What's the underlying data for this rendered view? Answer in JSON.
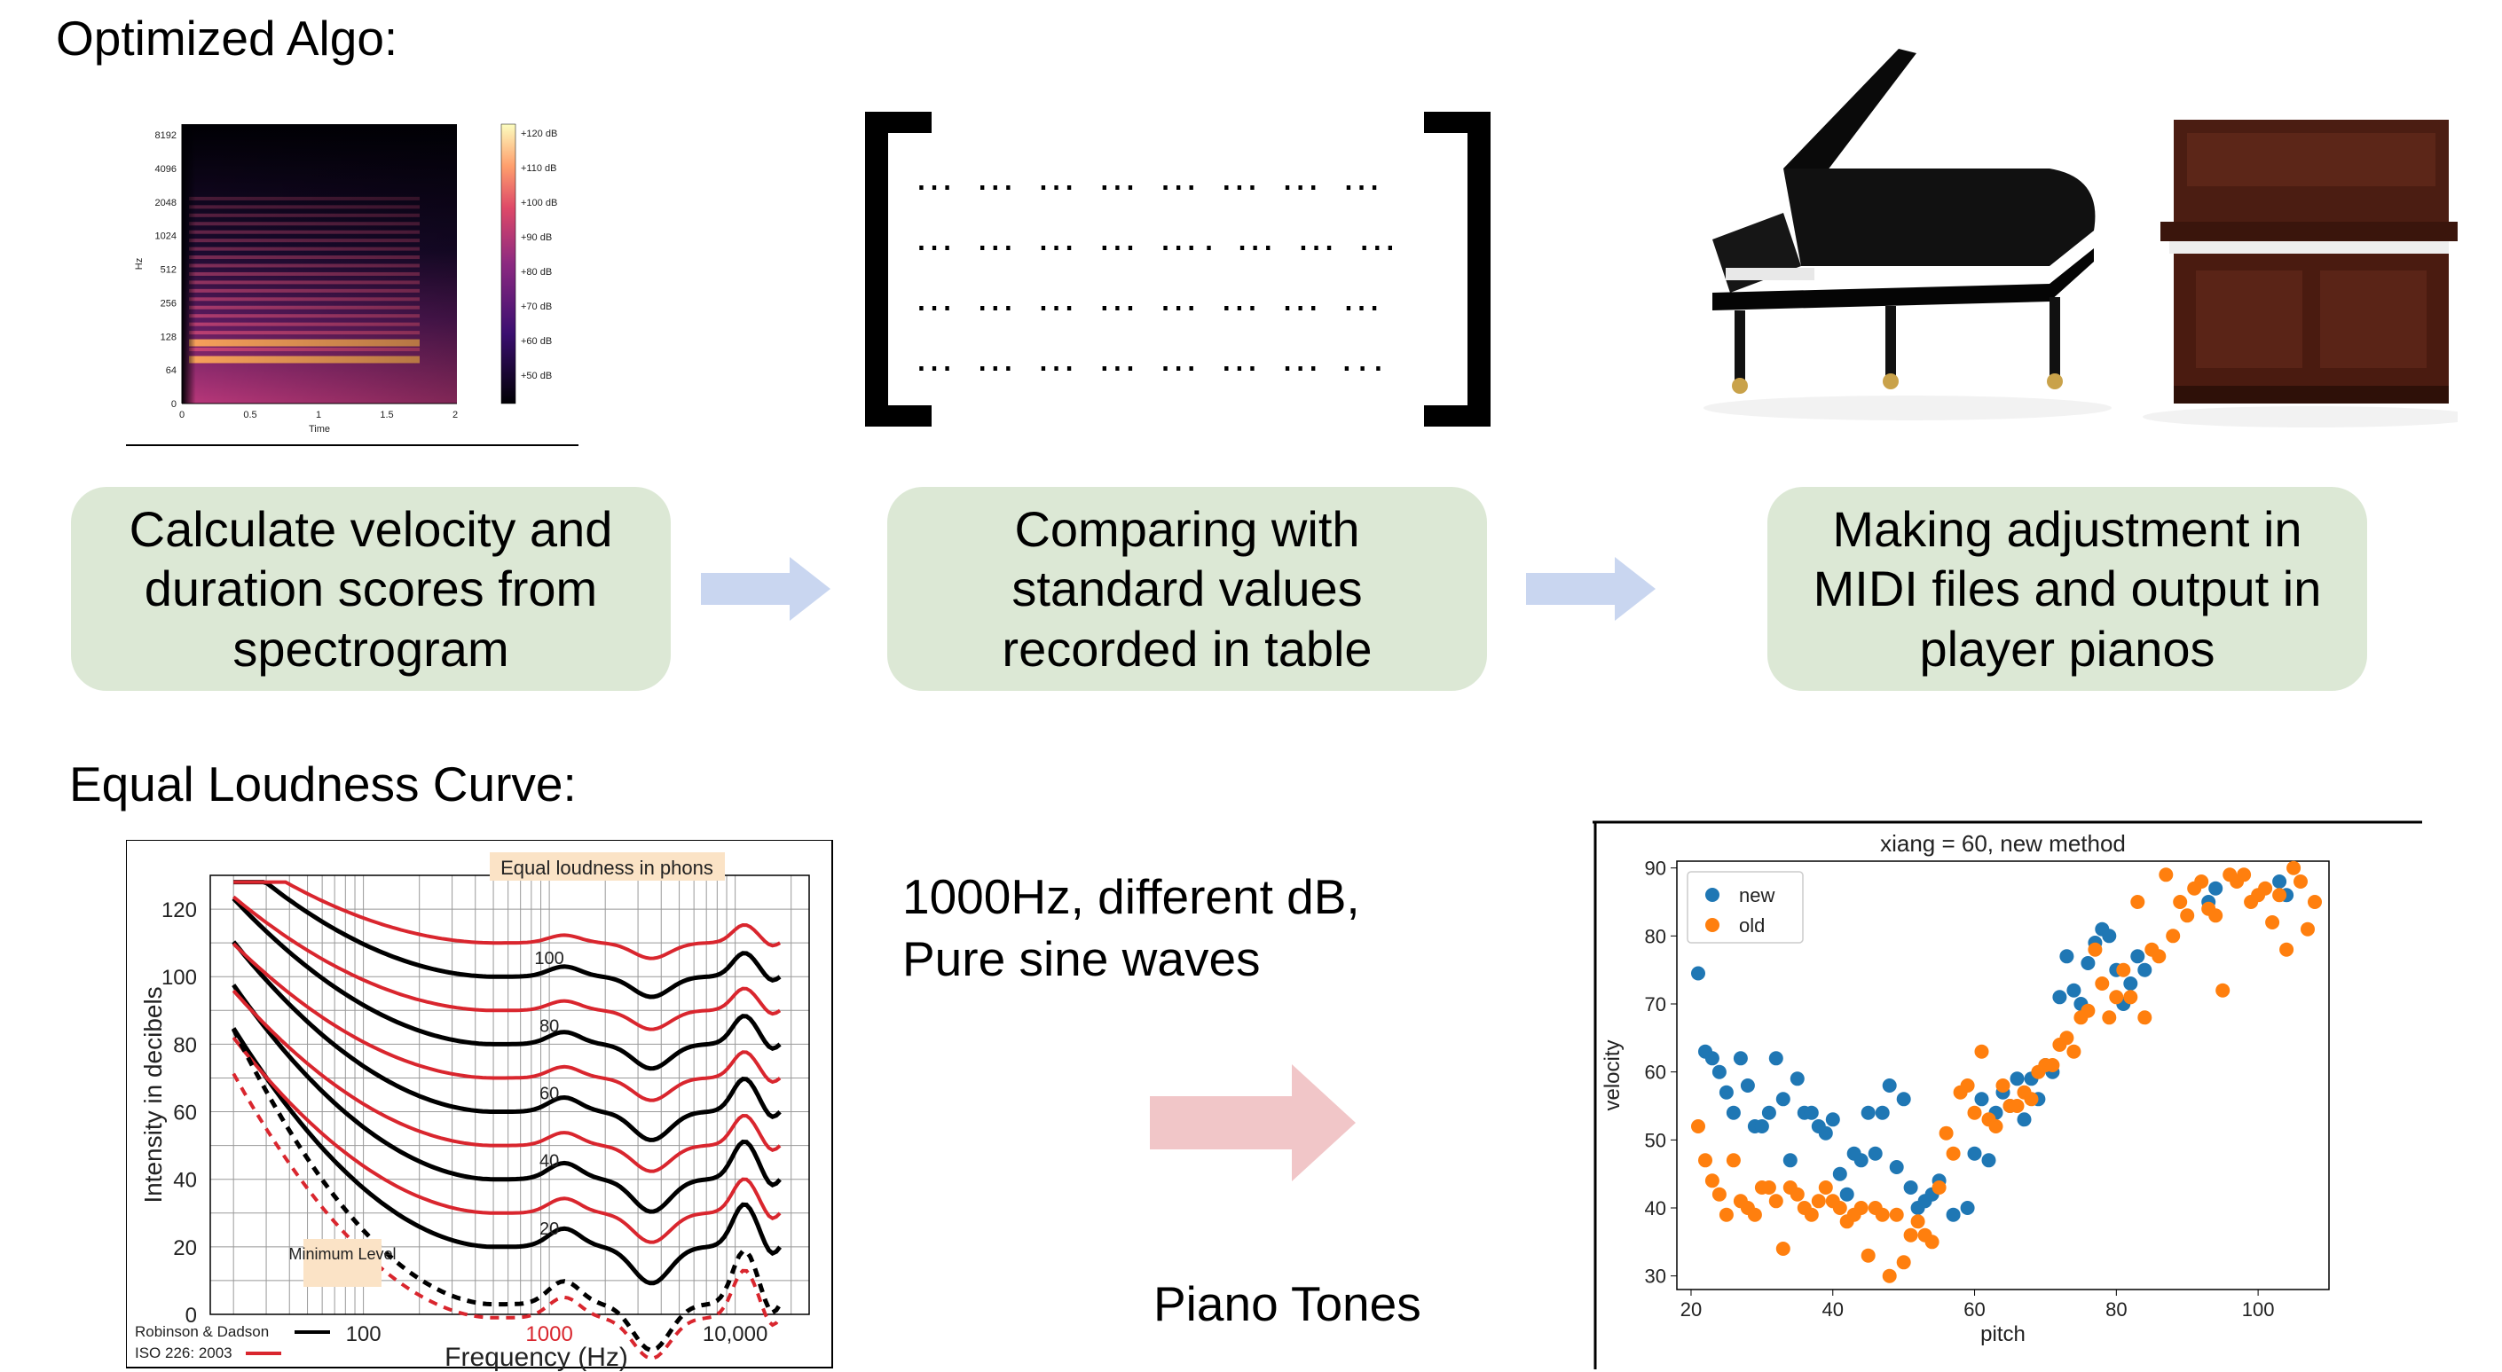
{
  "headings": {
    "optimized": "Optimized Algo:",
    "equal_loudness": "Equal Loudness Curve:"
  },
  "steps": [
    {
      "text": "Calculate velocity and duration scores from spectrogram"
    },
    {
      "text": "Comparing with standard values recorded in table"
    },
    {
      "text": "Making adjustment in MIDI files and output in player pianos"
    }
  ],
  "matrix_rows": [
    "… … … … … … … …",
    "… … … … …. … … …",
    "… … … … … … … …",
    "… … … … … … … ..."
  ],
  "spectrogram": {
    "y_ticks": [
      "8192",
      "4096",
      "2048",
      "1024",
      "512",
      "256",
      "128",
      "64",
      "0"
    ],
    "y_label": "Hz",
    "x_ticks": [
      "0",
      "0.5",
      "1",
      "1.5",
      "2"
    ],
    "x_label": "Time",
    "colorbar_ticks": [
      "+120 dB",
      "+110 dB",
      "+100 dB",
      "+90 dB",
      "+80 dB",
      "+70 dB",
      "+60 dB",
      "+50 dB"
    ]
  },
  "loudness_chart": {
    "title_box": "Equal loudness in phons",
    "y_ticks": [
      "120",
      "100",
      "80",
      "60",
      "40",
      "20",
      "0"
    ],
    "y_label": "Intensity in decibels",
    "x_label": "Frequency (Hz)",
    "x_ticks": [
      "100",
      "1000",
      "10,000"
    ],
    "phon_labels": [
      "100",
      "80",
      "60",
      "40",
      "20"
    ],
    "min_level": "Minimum Level",
    "legend": [
      "Robinson & Dadson",
      "ISO 226: 2003"
    ],
    "colors": {
      "robinson": "#000000",
      "iso": "#d9262e"
    }
  },
  "middle_text": {
    "line1": "1000Hz, different dB,",
    "line2": "Pure sine waves",
    "piano_tones": "Piano Tones"
  },
  "chart_data": {
    "type": "scatter",
    "title": "xiang = 60, new method",
    "xlabel": "pitch",
    "ylabel": "velocity",
    "xlim": [
      18,
      110
    ],
    "ylim": [
      28,
      91
    ],
    "x_ticks": [
      20,
      40,
      60,
      80,
      100
    ],
    "y_ticks": [
      30,
      40,
      50,
      60,
      70,
      80,
      90
    ],
    "legend_position": "top-left",
    "series": [
      {
        "name": "new",
        "color": "#1f77b4",
        "points": [
          [
            21,
            74.5
          ],
          [
            22,
            63
          ],
          [
            23,
            62
          ],
          [
            24,
            60
          ],
          [
            25,
            57
          ],
          [
            26,
            54
          ],
          [
            27,
            62
          ],
          [
            28,
            58
          ],
          [
            29,
            52
          ],
          [
            30,
            52
          ],
          [
            31,
            54
          ],
          [
            32,
            62
          ],
          [
            33,
            56
          ],
          [
            34,
            47
          ],
          [
            35,
            59
          ],
          [
            36,
            54
          ],
          [
            37,
            54
          ],
          [
            38,
            52
          ],
          [
            39,
            51
          ],
          [
            40,
            53
          ],
          [
            41,
            45
          ],
          [
            42,
            42
          ],
          [
            43,
            48
          ],
          [
            44,
            47
          ],
          [
            45,
            54
          ],
          [
            46,
            48
          ],
          [
            47,
            54
          ],
          [
            48,
            58
          ],
          [
            49,
            46
          ],
          [
            50,
            56
          ],
          [
            51,
            43
          ],
          [
            52,
            40
          ],
          [
            53,
            41
          ],
          [
            54,
            42
          ],
          [
            55,
            44
          ],
          [
            57,
            39
          ],
          [
            59,
            40
          ],
          [
            60,
            48
          ],
          [
            61,
            56
          ],
          [
            62,
            47
          ],
          [
            63,
            54
          ],
          [
            64,
            57
          ],
          [
            65,
            55
          ],
          [
            66,
            59
          ],
          [
            67,
            53
          ],
          [
            68,
            59
          ],
          [
            69,
            56
          ],
          [
            70,
            61
          ],
          [
            71,
            60
          ],
          [
            72,
            71
          ],
          [
            73,
            77
          ],
          [
            74,
            72
          ],
          [
            75,
            70
          ],
          [
            76,
            76
          ],
          [
            77,
            79
          ],
          [
            78,
            81
          ],
          [
            79,
            80
          ],
          [
            80,
            75
          ],
          [
            81,
            70
          ],
          [
            82,
            73
          ],
          [
            83,
            77
          ],
          [
            84,
            75
          ],
          [
            93,
            85
          ],
          [
            94,
            87
          ],
          [
            103,
            88
          ],
          [
            104,
            86
          ]
        ]
      },
      {
        "name": "old",
        "color": "#ff7f0e",
        "points": [
          [
            21,
            52
          ],
          [
            22,
            47
          ],
          [
            23,
            44
          ],
          [
            24,
            42
          ],
          [
            25,
            39
          ],
          [
            26,
            47
          ],
          [
            27,
            41
          ],
          [
            28,
            40
          ],
          [
            29,
            39
          ],
          [
            30,
            43
          ],
          [
            31,
            43
          ],
          [
            32,
            41
          ],
          [
            33,
            34
          ],
          [
            34,
            43
          ],
          [
            35,
            42
          ],
          [
            36,
            40
          ],
          [
            37,
            39
          ],
          [
            38,
            41
          ],
          [
            39,
            43
          ],
          [
            40,
            41
          ],
          [
            41,
            40
          ],
          [
            42,
            38
          ],
          [
            43,
            39
          ],
          [
            44,
            40
          ],
          [
            45,
            33
          ],
          [
            46,
            40
          ],
          [
            47,
            39
          ],
          [
            48,
            30
          ],
          [
            49,
            39
          ],
          [
            50,
            32
          ],
          [
            51,
            36
          ],
          [
            52,
            38
          ],
          [
            53,
            36
          ],
          [
            54,
            35
          ],
          [
            55,
            43
          ],
          [
            56,
            51
          ],
          [
            57,
            48
          ],
          [
            58,
            57
          ],
          [
            59,
            58
          ],
          [
            60,
            54
          ],
          [
            61,
            63
          ],
          [
            62,
            53
          ],
          [
            63,
            52
          ],
          [
            64,
            58
          ],
          [
            65,
            55
          ],
          [
            66,
            55
          ],
          [
            67,
            57
          ],
          [
            68,
            56
          ],
          [
            69,
            60
          ],
          [
            70,
            61
          ],
          [
            71,
            61
          ],
          [
            72,
            64
          ],
          [
            73,
            65
          ],
          [
            74,
            63
          ],
          [
            75,
            68
          ],
          [
            76,
            69
          ],
          [
            77,
            78
          ],
          [
            78,
            73
          ],
          [
            79,
            68
          ],
          [
            80,
            71
          ],
          [
            81,
            75
          ],
          [
            82,
            71
          ],
          [
            83,
            85
          ],
          [
            84,
            68
          ],
          [
            85,
            78
          ],
          [
            86,
            77
          ],
          [
            87,
            89
          ],
          [
            88,
            80
          ],
          [
            89,
            85
          ],
          [
            90,
            83
          ],
          [
            91,
            87
          ],
          [
            92,
            88
          ],
          [
            93,
            84
          ],
          [
            94,
            83
          ],
          [
            95,
            72
          ],
          [
            96,
            89
          ],
          [
            97,
            88
          ],
          [
            98,
            89
          ],
          [
            99,
            85
          ],
          [
            100,
            86
          ],
          [
            101,
            87
          ],
          [
            102,
            82
          ],
          [
            103,
            86
          ],
          [
            104,
            78
          ],
          [
            105,
            90
          ],
          [
            106,
            88
          ],
          [
            107,
            81
          ],
          [
            108,
            85
          ]
        ]
      }
    ]
  }
}
